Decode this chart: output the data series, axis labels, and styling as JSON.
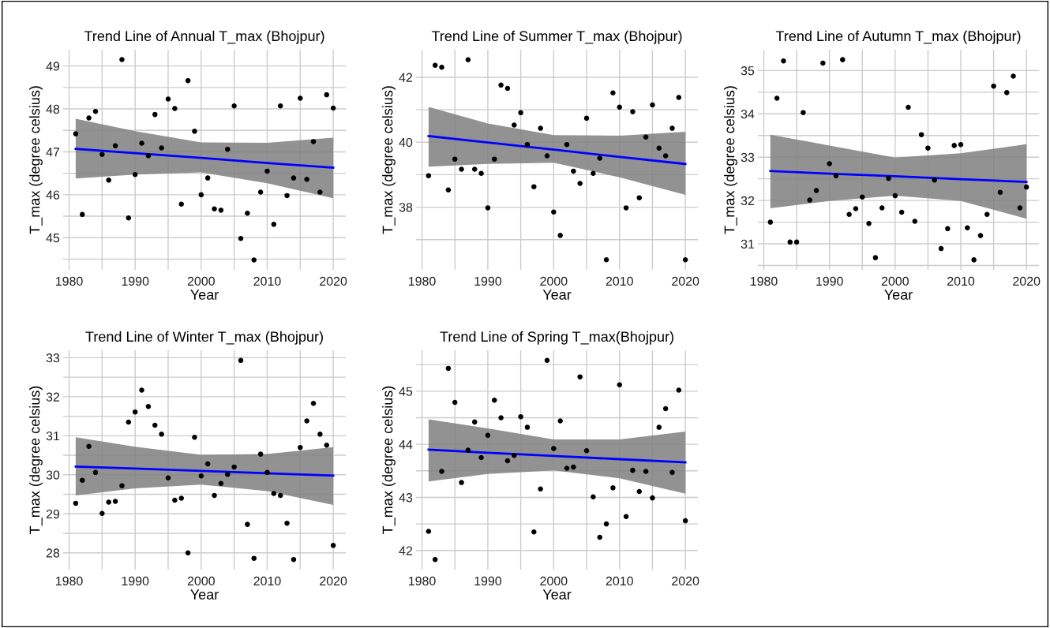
{
  "chart_data": [
    {
      "type": "scatter",
      "title": "Trend Line of Annual T_max (Bhojpur)",
      "xlabel": "Year",
      "ylabel": "T_max (degree celsius)",
      "grid": true,
      "x": [
        1981,
        1982,
        1983,
        1984,
        1985,
        1986,
        1987,
        1988,
        1989,
        1990,
        1991,
        1992,
        1993,
        1994,
        1995,
        1996,
        1997,
        1998,
        1999,
        2000,
        2001,
        2002,
        2003,
        2004,
        2005,
        2006,
        2007,
        2008,
        2009,
        2010,
        2011,
        2012,
        2013,
        2014,
        2015,
        2016,
        2017,
        2018,
        2019,
        2020
      ],
      "xlim": [
        1979.1,
        2021.9
      ],
      "xticks": [
        1980,
        {
          "value": 1985,
          "label": null
        },
        1990,
        {
          "value": 1995,
          "label": null
        },
        2000,
        {
          "value": 2005,
          "label": null
        },
        2010,
        {
          "value": 2015,
          "label": null
        },
        2020
      ],
      "ylim": [
        44.25,
        49.38
      ],
      "yticks": [
        {
          "value": 44.5,
          "label": null
        },
        45,
        {
          "value": 45.5,
          "label": null
        },
        46,
        {
          "value": 46.5,
          "label": null
        },
        47,
        {
          "value": 47.5,
          "label": null
        },
        48,
        {
          "value": 48.5,
          "label": null
        },
        49
      ],
      "series": [
        {
          "marker": "circle",
          "color": "#000000",
          "values": [
            47.42,
            45.54,
            47.79,
            47.94,
            46.94,
            46.34,
            47.14,
            49.15,
            45.46,
            46.47,
            47.2,
            46.91,
            47.87,
            47.09,
            48.23,
            48.01,
            45.78,
            48.66,
            47.48,
            46.0,
            46.39,
            45.67,
            45.64,
            47.06,
            48.07,
            44.98,
            45.57,
            44.48,
            46.06,
            46.55,
            45.31,
            48.07,
            45.98,
            46.39,
            48.25,
            46.36,
            47.24,
            46.06,
            48.33,
            48.02
          ]
        },
        {
          "type": "line",
          "color": "#0000ff",
          "x": [
            1981,
            1990,
            2000,
            2010,
            2020
          ],
          "values": [
            47.07,
            46.97,
            46.86,
            46.74,
            46.63
          ],
          "lower": [
            46.38,
            46.47,
            46.52,
            46.27,
            45.92
          ],
          "upper": [
            47.77,
            47.48,
            47.22,
            47.21,
            47.33
          ]
        }
      ]
    },
    {
      "type": "scatter",
      "title": "Trend Line of Summer T_max (Bhojpur)",
      "xlabel": "Year",
      "ylabel": "T_max (degree celsius)",
      "grid": true,
      "x": [
        1981,
        1982,
        1983,
        1984,
        1985,
        1986,
        1987,
        1988,
        1989,
        1990,
        1991,
        1992,
        1993,
        1994,
        1995,
        1996,
        1997,
        1998,
        1999,
        2000,
        2001,
        2002,
        2003,
        2004,
        2005,
        2006,
        2007,
        2008,
        2009,
        2010,
        2011,
        2012,
        2013,
        2014,
        2015,
        2016,
        2017,
        2018,
        2019,
        2020
      ],
      "xlim": [
        1979.1,
        2021.9
      ],
      "xticks": [
        1980,
        {
          "value": 1985,
          "label": null
        },
        1990,
        {
          "value": 1995,
          "label": null
        },
        2000,
        {
          "value": 2005,
          "label": null
        },
        2010,
        {
          "value": 2015,
          "label": null
        },
        2020
      ],
      "ylim": [
        36.07,
        42.85
      ],
      "yticks": [
        {
          "value": 37,
          "label": null
        },
        38,
        {
          "value": 39,
          "label": null
        },
        40,
        {
          "value": 41,
          "label": null
        },
        42
      ],
      "series": [
        {
          "marker": "circle",
          "color": "#000000",
          "values": [
            38.97,
            42.37,
            42.31,
            38.53,
            39.48,
            39.17,
            42.54,
            39.17,
            39.04,
            37.98,
            39.48,
            41.76,
            41.66,
            40.53,
            40.91,
            39.93,
            38.63,
            40.43,
            39.58,
            37.85,
            37.13,
            39.93,
            39.11,
            38.73,
            40.74,
            39.04,
            39.51,
            36.38,
            41.52,
            41.08,
            37.98,
            40.94,
            38.29,
            40.16,
            41.15,
            39.82,
            39.58,
            40.43,
            41.38,
            36.38
          ]
        },
        {
          "type": "line",
          "color": "#0000ff",
          "x": [
            1981,
            1990,
            2000,
            2010,
            2020
          ],
          "values": [
            40.19,
            39.99,
            39.77,
            39.55,
            39.33
          ],
          "lower": [
            39.25,
            39.33,
            39.37,
            38.92,
            38.38
          ],
          "upper": [
            41.09,
            40.58,
            40.22,
            40.2,
            40.32
          ]
        }
      ]
    },
    {
      "type": "scatter",
      "title": "Trend Line of Autumn T_max (Bhojpur)",
      "xlabel": "Year",
      "ylabel": "T_max (degree celsius)",
      "grid": true,
      "x": [
        1981,
        1982,
        1983,
        1984,
        1985,
        1986,
        1987,
        1988,
        1989,
        1990,
        1991,
        1992,
        1993,
        1994,
        1995,
        1996,
        1997,
        1998,
        1999,
        2000,
        2001,
        2002,
        2003,
        2004,
        2005,
        2006,
        2007,
        2008,
        2009,
        2010,
        2011,
        2012,
        2013,
        2014,
        2015,
        2016,
        2017,
        2018,
        2019,
        2020
      ],
      "xlim": [
        1979.1,
        2021.9
      ],
      "xticks": [
        1980,
        {
          "value": 1985,
          "label": null
        },
        1990,
        {
          "value": 1995,
          "label": null
        },
        2000,
        {
          "value": 2005,
          "label": null
        },
        2010,
        {
          "value": 2015,
          "label": null
        },
        2020
      ],
      "ylim": [
        30.4,
        35.48
      ],
      "yticks": [
        {
          "value": 30.5,
          "label": null
        },
        31,
        {
          "value": 31.5,
          "label": null
        },
        32,
        {
          "value": 32.5,
          "label": null
        },
        33,
        {
          "value": 33.5,
          "label": null
        },
        34,
        {
          "value": 34.5,
          "label": null
        },
        35
      ],
      "series": [
        {
          "marker": "circle",
          "color": "#000000",
          "values": [
            31.5,
            34.36,
            35.22,
            31.04,
            31.04,
            34.03,
            32.01,
            32.23,
            35.17,
            32.85,
            32.57,
            35.25,
            31.68,
            31.81,
            32.08,
            31.47,
            30.68,
            31.83,
            32.51,
            32.11,
            31.73,
            34.15,
            31.52,
            33.52,
            33.21,
            32.47,
            30.89,
            31.35,
            33.27,
            33.29,
            31.37,
            30.63,
            31.19,
            31.68,
            34.64,
            32.19,
            34.49,
            34.87,
            31.83,
            32.31
          ]
        },
        {
          "type": "line",
          "color": "#0000ff",
          "x": [
            1981,
            1990,
            2000,
            2010,
            2020
          ],
          "values": [
            32.68,
            32.62,
            32.56,
            32.49,
            32.43
          ],
          "lower": [
            31.82,
            31.99,
            32.11,
            31.99,
            31.58
          ],
          "upper": [
            33.52,
            33.27,
            32.99,
            33.09,
            33.3
          ]
        }
      ]
    },
    {
      "type": "scatter",
      "title": "Trend Line of Winter T_max (Bhojpur)",
      "xlabel": "Year",
      "ylabel": "T_max (degree celsius)",
      "grid": true,
      "x": [
        1981,
        1982,
        1983,
        1984,
        1985,
        1986,
        1987,
        1988,
        1989,
        1990,
        1991,
        1992,
        1993,
        1994,
        1995,
        1996,
        1997,
        1998,
        1999,
        2000,
        2001,
        2002,
        2003,
        2004,
        2005,
        2006,
        2007,
        2008,
        2009,
        2010,
        2011,
        2012,
        2013,
        2014,
        2015,
        2016,
        2017,
        2018,
        2019,
        2020
      ],
      "xlim": [
        1979.1,
        2021.9
      ],
      "xticks": [
        1980,
        {
          "value": 1985,
          "label": null
        },
        1990,
        {
          "value": 1995,
          "label": null
        },
        2000,
        {
          "value": 2005,
          "label": null
        },
        2010,
        {
          "value": 2015,
          "label": null
        },
        2020
      ],
      "ylim": [
        27.57,
        33.19
      ],
      "yticks": [
        28,
        {
          "value": 28.5,
          "label": null
        },
        29,
        {
          "value": 29.5,
          "label": null
        },
        30,
        {
          "value": 30.5,
          "label": null
        },
        31,
        {
          "value": 31.5,
          "label": null
        },
        32,
        {
          "value": 32.5,
          "label": null
        },
        33
      ],
      "series": [
        {
          "marker": "circle",
          "color": "#000000",
          "values": [
            29.27,
            29.86,
            30.73,
            30.06,
            29.01,
            29.3,
            29.32,
            29.72,
            31.35,
            31.61,
            32.17,
            31.75,
            31.27,
            31.04,
            29.92,
            29.35,
            29.4,
            28.0,
            30.96,
            29.97,
            30.28,
            29.47,
            29.78,
            30.01,
            30.2,
            32.93,
            28.73,
            27.86,
            30.53,
            30.06,
            29.52,
            29.47,
            28.76,
            27.83,
            30.7,
            31.38,
            31.83,
            31.04,
            30.76,
            28.19
          ]
        },
        {
          "type": "line",
          "color": "#0000ff",
          "x": [
            1981,
            1990,
            2000,
            2010,
            2020
          ],
          "values": [
            30.21,
            30.16,
            30.1,
            30.04,
            29.98
          ],
          "lower": [
            29.47,
            29.65,
            29.75,
            29.58,
            29.23
          ],
          "upper": [
            30.96,
            30.72,
            30.51,
            30.53,
            30.71
          ]
        }
      ]
    },
    {
      "type": "scatter",
      "title": "Trend Line of Spring T_max(Bhojpur)",
      "xlabel": "Year",
      "ylabel": "T_max (degree celsius)",
      "grid": true,
      "x": [
        1981,
        1982,
        1983,
        1984,
        1985,
        1986,
        1987,
        1988,
        1989,
        1990,
        1991,
        1992,
        1993,
        1994,
        1995,
        1996,
        1997,
        1998,
        1999,
        2000,
        2001,
        2002,
        2003,
        2004,
        2005,
        2006,
        2007,
        2008,
        2009,
        2010,
        2011,
        2012,
        2013,
        2014,
        2015,
        2016,
        2017,
        2018,
        2019,
        2020
      ],
      "xlim": [
        1979.1,
        2021.9
      ],
      "xticks": [
        1980,
        {
          "value": 1985,
          "label": null
        },
        1990,
        {
          "value": 1995,
          "label": null
        },
        2000,
        {
          "value": 2005,
          "label": null
        },
        2010,
        {
          "value": 2015,
          "label": null
        },
        2020
      ],
      "ylim": [
        41.64,
        45.77
      ],
      "yticks": [
        42,
        {
          "value": 42.5,
          "label": null
        },
        43,
        {
          "value": 43.5,
          "label": null
        },
        44,
        {
          "value": 44.5,
          "label": null
        },
        45,
        {
          "value": 45.5,
          "label": null
        }
      ],
      "series": [
        {
          "marker": "circle",
          "color": "#000000",
          "values": [
            42.36,
            41.83,
            43.49,
            45.43,
            44.79,
            43.28,
            43.89,
            44.42,
            43.75,
            44.17,
            44.83,
            44.5,
            43.69,
            43.79,
            44.52,
            44.32,
            42.35,
            43.16,
            45.58,
            43.92,
            44.44,
            43.55,
            43.57,
            45.27,
            43.88,
            43.01,
            42.25,
            42.5,
            43.18,
            45.12,
            42.64,
            43.51,
            43.11,
            43.49,
            42.99,
            44.32,
            44.67,
            43.47,
            45.02,
            42.56
          ]
        },
        {
          "type": "line",
          "color": "#0000ff",
          "x": [
            1981,
            1990,
            2000,
            2010,
            2020
          ],
          "values": [
            43.9,
            43.84,
            43.78,
            43.72,
            43.66
          ],
          "lower": [
            43.3,
            43.44,
            43.51,
            43.36,
            43.07
          ],
          "upper": [
            44.47,
            44.3,
            44.09,
            44.09,
            44.24
          ]
        }
      ]
    }
  ]
}
